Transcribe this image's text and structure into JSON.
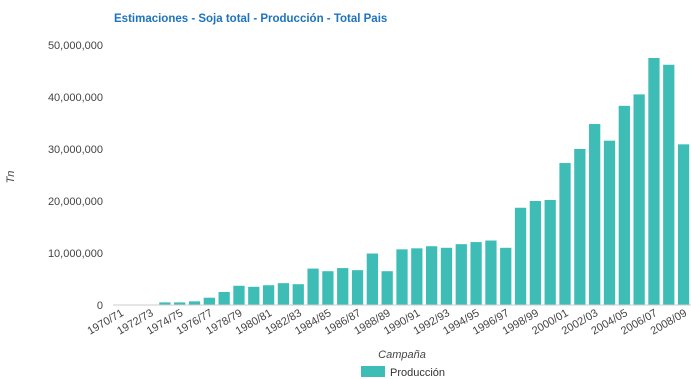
{
  "chart_data": {
    "type": "bar",
    "title": "Estimaciones - Soja total - Producción - Total Pais",
    "xlabel": "Campaña",
    "ylabel": "Tn",
    "ylim": [
      0,
      50000000
    ],
    "yticks": [
      0,
      10000000,
      20000000,
      30000000,
      40000000,
      50000000
    ],
    "ytick_labels": [
      "0",
      "10,000,000",
      "20,000,000",
      "30,000,000",
      "40,000,000",
      "50,000,000"
    ],
    "grid": false,
    "legend_position": "bottom",
    "categories": [
      "1970/71",
      "1971/72",
      "1972/73",
      "1973/74",
      "1974/75",
      "1975/76",
      "1976/77",
      "1977/78",
      "1978/79",
      "1979/80",
      "1980/81",
      "1981/82",
      "1982/83",
      "1983/84",
      "1984/85",
      "1985/86",
      "1986/87",
      "1987/88",
      "1988/89",
      "1989/90",
      "1990/91",
      "1991/92",
      "1992/93",
      "1993/94",
      "1994/95",
      "1995/96",
      "1996/97",
      "1997/98",
      "1998/99",
      "1999/00",
      "2000/01",
      "2001/02",
      "2002/03",
      "2003/04",
      "2004/05",
      "2005/06",
      "2006/07",
      "2007/08",
      "2008/09"
    ],
    "xtick_labels": [
      "1970/71",
      "1972/73",
      "1974/75",
      "1976/77",
      "1978/79",
      "1980/81",
      "1982/83",
      "1984/85",
      "1986/87",
      "1988/89",
      "1990/91",
      "1992/93",
      "1994/95",
      "1996/97",
      "1998/99",
      "2000/01",
      "2002/03",
      "2004/05",
      "2006/07",
      "2008/09"
    ],
    "series": [
      {
        "name": "Producción",
        "color": "#3dbdb6",
        "values": [
          30000,
          80000,
          80000,
          500000,
          500000,
          700000,
          1400000,
          2500000,
          3700000,
          3500000,
          3800000,
          4200000,
          4000000,
          7000000,
          6500000,
          7100000,
          6700000,
          9900000,
          6500000,
          10700000,
          10900000,
          11300000,
          11000000,
          11700000,
          12100000,
          12400000,
          11000000,
          18700000,
          20000000,
          20200000,
          27300000,
          30000000,
          34800000,
          31600000,
          38300000,
          40500000,
          47500000,
          46200000,
          30900000
        ]
      }
    ],
    "colors": {
      "title": "#1e73be",
      "bar": "#3dbdb6",
      "axis": "#cccccc",
      "text": "#444444"
    }
  }
}
